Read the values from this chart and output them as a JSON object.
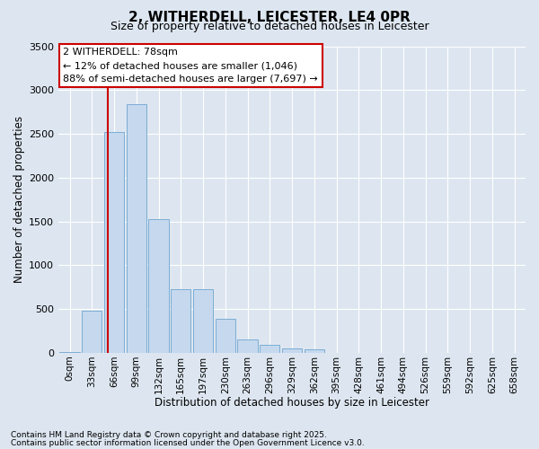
{
  "title": "2, WITHERDELL, LEICESTER, LE4 0PR",
  "subtitle": "Size of property relative to detached houses in Leicester",
  "xlabel": "Distribution of detached houses by size in Leicester",
  "ylabel": "Number of detached properties",
  "bar_color": "#c5d8ee",
  "bar_edge_color": "#7badd4",
  "background_color": "#dde6f0",
  "plot_bg_color": "#dde6f0",
  "grid_color": "#ffffff",
  "categories": [
    "0sqm",
    "33sqm",
    "66sqm",
    "99sqm",
    "132sqm",
    "165sqm",
    "197sqm",
    "230sqm",
    "263sqm",
    "296sqm",
    "329sqm",
    "362sqm",
    "395sqm",
    "428sqm",
    "461sqm",
    "494sqm",
    "526sqm",
    "559sqm",
    "592sqm",
    "625sqm",
    "658sqm"
  ],
  "values": [
    10,
    480,
    2520,
    2840,
    1530,
    730,
    730,
    390,
    150,
    90,
    55,
    40,
    0,
    0,
    0,
    0,
    0,
    0,
    0,
    0,
    0
  ],
  "ylim": [
    0,
    3500
  ],
  "yticks": [
    0,
    500,
    1000,
    1500,
    2000,
    2500,
    3000,
    3500
  ],
  "vline_color": "#cc0000",
  "vline_xindex": 1.72,
  "annotation_text": "2 WITHERDELL: 78sqm\n← 12% of detached houses are smaller (1,046)\n88% of semi-detached houses are larger (7,697) →",
  "annotation_box_facecolor": "#ffffff",
  "annotation_box_edgecolor": "#cc0000",
  "footer_line1": "Contains HM Land Registry data © Crown copyright and database right 2025.",
  "footer_line2": "Contains public sector information licensed under the Open Government Licence v3.0.",
  "fig_width": 6.0,
  "fig_height": 5.0,
  "dpi": 100
}
